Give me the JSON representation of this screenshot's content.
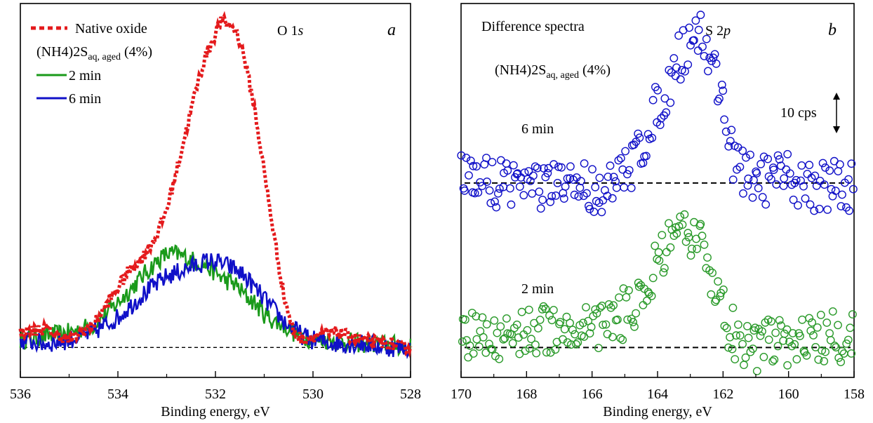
{
  "chart_data": [
    {
      "panel_letter": "a",
      "type": "line",
      "title": "O 1s",
      "title_main": "O 1",
      "title_italic": "s",
      "xlabel": "Binding energy, eV",
      "xlim": [
        536,
        528
      ],
      "xticks": [
        536,
        534,
        532,
        530,
        528
      ],
      "x_reversed": true,
      "ylim": [
        0,
        100
      ],
      "y_ticks_shown": false,
      "baseline_y": 8,
      "legend_header_sub": "aq, aged",
      "legend_header_main": "(NH4)2S",
      "legend_header_suffix": " (4%)",
      "legend_placement": "top-left",
      "series": [
        {
          "name": "Native oxide",
          "color": "#e41a1c",
          "style": "dotted",
          "x": [
            536.0,
            535.5,
            535.0,
            534.5,
            534.2,
            534.0,
            533.8,
            533.5,
            533.2,
            533.0,
            532.8,
            532.6,
            532.4,
            532.2,
            532.0,
            531.9,
            531.8,
            531.7,
            531.6,
            531.5,
            531.4,
            531.2,
            531.0,
            530.8,
            530.6,
            530.4,
            530.2,
            530.0,
            529.5,
            529.0,
            528.5,
            528.0
          ],
          "y": [
            12,
            13,
            10,
            14,
            20,
            24,
            28,
            32,
            38,
            45,
            55,
            66,
            77,
            86,
            92,
            95,
            95,
            94,
            93,
            90,
            85,
            72,
            55,
            38,
            22,
            12,
            10,
            11,
            12,
            10,
            9,
            8
          ]
        },
        {
          "name": "2 min",
          "color": "#1a9a1a",
          "style": "solid",
          "x": [
            536.0,
            535.5,
            535.0,
            534.5,
            534.0,
            533.5,
            533.2,
            533.0,
            532.8,
            532.6,
            532.4,
            532.2,
            532.0,
            531.8,
            531.6,
            531.4,
            531.2,
            531.0,
            530.8,
            530.6,
            530.4,
            530.2,
            530.0,
            529.5,
            529.0,
            528.5,
            528.0
          ],
          "y": [
            10,
            11,
            12,
            14,
            20,
            27,
            31,
            33,
            33,
            32,
            31,
            30,
            28,
            26,
            25,
            22,
            20,
            17,
            15,
            14,
            12,
            11,
            10,
            10,
            9,
            9,
            8
          ]
        },
        {
          "name": "6 min",
          "color": "#1010c8",
          "style": "solid",
          "x": [
            536.0,
            535.5,
            535.0,
            534.5,
            534.0,
            533.5,
            533.2,
            533.0,
            532.8,
            532.6,
            532.4,
            532.2,
            532.0,
            531.8,
            531.6,
            531.4,
            531.2,
            531.0,
            530.8,
            530.6,
            530.4,
            530.2,
            530.0,
            529.5,
            529.0,
            528.5,
            528.0
          ],
          "y": [
            10,
            9,
            10,
            12,
            16,
            22,
            25,
            27,
            28,
            29,
            30,
            31,
            31,
            30,
            29,
            27,
            24,
            21,
            18,
            15,
            13,
            11,
            10,
            9,
            9,
            8,
            8
          ]
        }
      ]
    },
    {
      "panel_letter": "b",
      "type": "scatter",
      "title": "Difference spectra",
      "element_label": "S 2p",
      "element_main": "S 2",
      "element_italic": "p",
      "xlabel": "Binding energy, eV",
      "xlim": [
        170,
        158
      ],
      "xticks": [
        170,
        168,
        166,
        164,
        162,
        160,
        158
      ],
      "x_reversed": true,
      "ylim": [
        0,
        100
      ],
      "y_ticks_shown": false,
      "legend_header_sub": "aq, aged",
      "legend_header_main": "(NH4)2S",
      "legend_header_suffix": " (4%)",
      "scale_bar_label": "10 cps",
      "scale_bar_cps": 10,
      "series": [
        {
          "name": "6 min",
          "color": "#1010c8",
          "marker": "open-circle",
          "baseline_y": 52,
          "x": [
            170.0,
            169.5,
            169.0,
            168.5,
            168.0,
            167.5,
            167.0,
            166.5,
            166.0,
            165.5,
            165.0,
            164.8,
            164.6,
            164.4,
            164.2,
            164.0,
            163.8,
            163.6,
            163.4,
            163.2,
            163.0,
            162.8,
            162.6,
            162.4,
            162.2,
            162.0,
            161.8,
            161.6,
            161.4,
            161.2,
            161.0,
            160.5,
            160.0,
            159.5,
            159.0,
            158.5,
            158.0
          ],
          "y": [
            54,
            53,
            52,
            53,
            52,
            51,
            50,
            52,
            51,
            50,
            54,
            57,
            61,
            64,
            68,
            72,
            76,
            80,
            84,
            88,
            91,
            93,
            90,
            86,
            80,
            74,
            64,
            56,
            54,
            53,
            54,
            52,
            53,
            52,
            51,
            52,
            51
          ]
        },
        {
          "name": "2 min",
          "color": "#2a9a2a",
          "marker": "open-circle",
          "baseline_y": 8,
          "x": [
            170.0,
            169.5,
            169.0,
            168.5,
            168.0,
            167.5,
            167.0,
            166.5,
            166.0,
            165.5,
            165.0,
            164.5,
            164.2,
            164.0,
            163.8,
            163.6,
            163.4,
            163.2,
            163.0,
            162.8,
            162.6,
            162.4,
            162.2,
            162.0,
            161.8,
            161.5,
            161.2,
            161.0,
            160.5,
            160.0,
            159.5,
            159.0,
            158.5,
            158.0
          ],
          "y": [
            10,
            11,
            10,
            12,
            13,
            12,
            14,
            13,
            14,
            15,
            17,
            22,
            26,
            30,
            33,
            35,
            36,
            37,
            37,
            36,
            34,
            30,
            24,
            18,
            13,
            10,
            8,
            8,
            9,
            10,
            11,
            10,
            11,
            10
          ]
        }
      ]
    }
  ]
}
